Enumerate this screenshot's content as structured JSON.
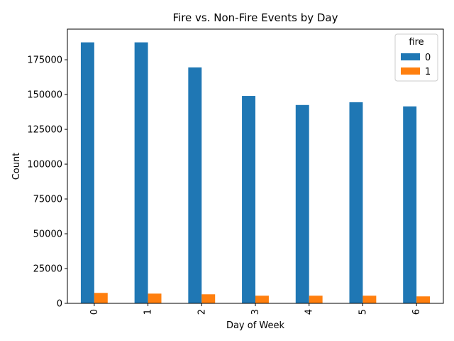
{
  "chart_data": {
    "type": "bar",
    "title": "Fire vs. Non-Fire Events by Day",
    "xlabel": "Day of Week",
    "ylabel": "Count",
    "categories": [
      "0",
      "1",
      "2",
      "3",
      "4",
      "5",
      "6"
    ],
    "ylim": [
      0,
      197000
    ],
    "yticks": [
      0,
      25000,
      50000,
      75000,
      100000,
      125000,
      150000,
      175000
    ],
    "legend": {
      "title": "fire",
      "placement": "top-right"
    },
    "grid": false,
    "series": [
      {
        "name": "0",
        "color": "#1f77b4",
        "values": [
          187500,
          187500,
          169500,
          149000,
          142500,
          144500,
          141500
        ]
      },
      {
        "name": "1",
        "color": "#ff7f0e",
        "values": [
          7500,
          7000,
          6500,
          5500,
          5500,
          5500,
          5000
        ]
      }
    ]
  }
}
